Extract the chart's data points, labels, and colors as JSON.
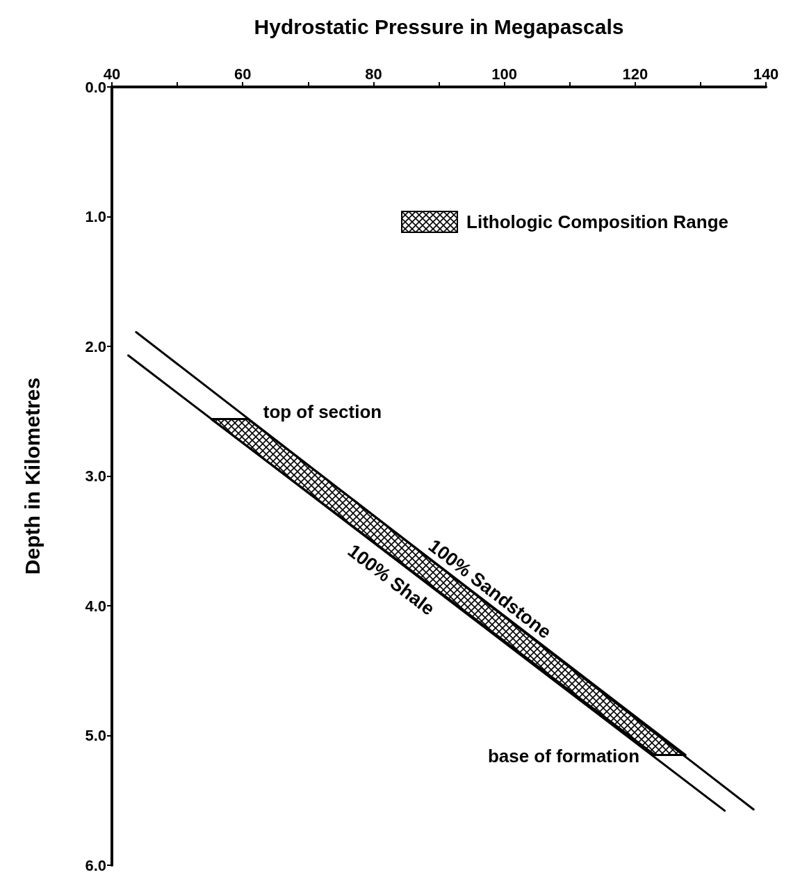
{
  "chart_data": {
    "type": "line",
    "xlabel": "Hydrostatic Pressure in Megapascals",
    "ylabel": "Depth in Kilometres",
    "xlim": [
      40,
      140
    ],
    "xticks": [
      40,
      {
        "value": 50,
        "label": null
      },
      60,
      {
        "value": 70,
        "label": null
      },
      80,
      {
        "value": 90,
        "label": null
      },
      100,
      {
        "value": 110,
        "label": null
      },
      120,
      {
        "value": 130,
        "label": null
      },
      140
    ],
    "ylim": [
      6,
      0
    ],
    "yticks": [
      {
        "value": 0,
        "label": "0.0"
      },
      {
        "value": 1,
        "label": "1.0"
      },
      {
        "value": 2,
        "label": "2.0"
      },
      {
        "value": 3,
        "label": "3.0"
      },
      {
        "value": 4,
        "label": "4.0"
      },
      {
        "value": 5,
        "label": "5.0"
      },
      {
        "value": 6,
        "label": "6.0"
      }
    ],
    "series": [
      {
        "name": "Lithologic Composition Range",
        "type": "area",
        "color": "#000000",
        "x": [
          55.2,
          60.8,
          127.7,
          123.0
        ],
        "values": [
          2.56,
          2.56,
          5.15,
          5.15
        ]
      },
      {
        "name": "100% Sandstone",
        "color": "#000000",
        "x": [
          43.7,
          138.1
        ],
        "values": [
          1.89,
          5.57
        ]
      },
      {
        "name": "100% Shale",
        "color": "#000000",
        "x": [
          42.5,
          133.7
        ],
        "values": [
          2.07,
          5.58
        ]
      }
    ],
    "annotations": [
      {
        "text": "top of section",
        "x": 60.8,
        "y": 2.56
      },
      {
        "text": "base of formation",
        "x": 123.0,
        "y": 5.15
      }
    ],
    "legend": "top right",
    "marker": "none",
    "line_style": "solid",
    "grid": false
  }
}
